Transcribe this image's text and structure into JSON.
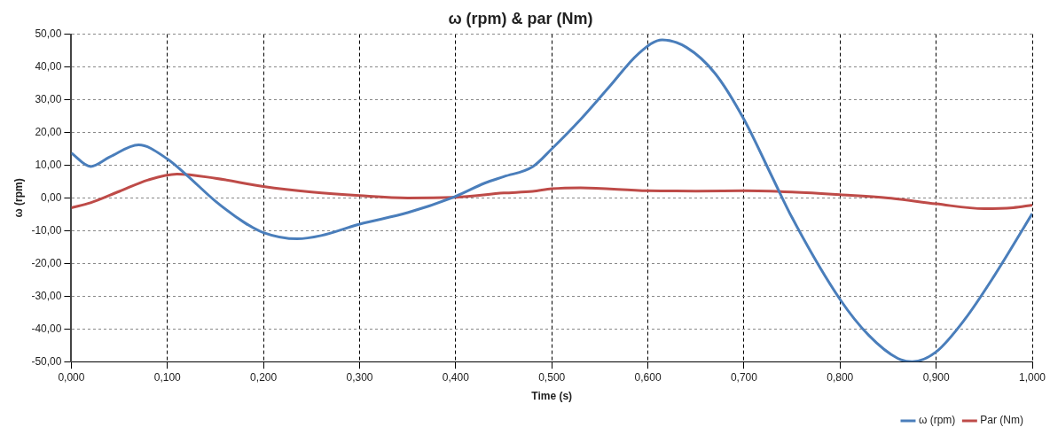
{
  "chart_data": {
    "type": "line",
    "title": "ω (rpm) & par (Nm)",
    "xlabel": "Time (s)",
    "ylabel": "ω (rpm)",
    "xlim": [
      0,
      1
    ],
    "ylim": [
      -50,
      50
    ],
    "xticks": [
      {
        "value": 0,
        "label": "0,000"
      },
      {
        "value": 0.1,
        "label": "0,100"
      },
      {
        "value": 0.2,
        "label": "0,200"
      },
      {
        "value": 0.3,
        "label": "0,300"
      },
      {
        "value": 0.4,
        "label": "0,400"
      },
      {
        "value": 0.5,
        "label": "0,500"
      },
      {
        "value": 0.6,
        "label": "0,600"
      },
      {
        "value": 0.7,
        "label": "0,700"
      },
      {
        "value": 0.8,
        "label": "0,800"
      },
      {
        "value": 0.9,
        "label": "0,900"
      },
      {
        "value": 1,
        "label": "1,000"
      }
    ],
    "yticks": [
      {
        "value": -50,
        "label": "-50,00"
      },
      {
        "value": -40,
        "label": "-40,00"
      },
      {
        "value": -30,
        "label": "-30,00"
      },
      {
        "value": -20,
        "label": "-20,00"
      },
      {
        "value": -10,
        "label": "-10,00"
      },
      {
        "value": 0,
        "label": "0,00"
      },
      {
        "value": 10,
        "label": "10,00"
      },
      {
        "value": 20,
        "label": "20,00"
      },
      {
        "value": 30,
        "label": "30,00"
      },
      {
        "value": 40,
        "label": "40,00"
      },
      {
        "value": 50,
        "label": "50,00"
      }
    ],
    "grid": true,
    "legend": "bottom right",
    "marker": "none",
    "line_style": "solid",
    "series": [
      {
        "name": "ω (rpm)",
        "color": "#4a7ebb",
        "x": [
          0,
          0.02,
          0.04,
          0.07,
          0.1,
          0.12,
          0.15,
          0.18,
          0.2,
          0.235,
          0.26,
          0.3,
          0.35,
          0.4,
          0.43,
          0.45,
          0.48,
          0.5,
          0.53,
          0.56,
          0.59,
          0.615,
          0.64,
          0.67,
          0.7,
          0.73,
          0.75,
          0.8,
          0.83,
          0.86,
          0.875,
          0.9,
          0.93,
          0.96,
          1.0
        ],
        "values": [
          13.7,
          9.6,
          12.5,
          16.2,
          11.9,
          7,
          -1,
          -7.5,
          -10.6,
          -12.5,
          -11.5,
          -8,
          -4.5,
          0.5,
          4.5,
          6.5,
          9.5,
          15,
          24,
          34,
          44,
          48.3,
          46,
          38,
          24,
          6,
          -6,
          -31,
          -42,
          -49,
          -50,
          -47,
          -37,
          -24,
          -4.8
        ]
      },
      {
        "name": "Par (Nm)",
        "color": "#be4b48",
        "x": [
          0,
          0.02,
          0.05,
          0.08,
          0.11,
          0.15,
          0.2,
          0.25,
          0.3,
          0.35,
          0.4,
          0.45,
          0.48,
          0.5,
          0.53,
          0.6,
          0.65,
          0.7,
          0.75,
          0.8,
          0.85,
          0.9,
          0.95,
          0.98,
          1.0
        ],
        "values": [
          -3,
          -1.5,
          2,
          5.5,
          7.3,
          6,
          3.5,
          1.8,
          0.7,
          0,
          0.2,
          1.5,
          2,
          2.8,
          3.1,
          2.2,
          2.1,
          2.2,
          1.8,
          1,
          0,
          -1.8,
          -3.3,
          -3,
          -2.2
        ]
      }
    ]
  }
}
